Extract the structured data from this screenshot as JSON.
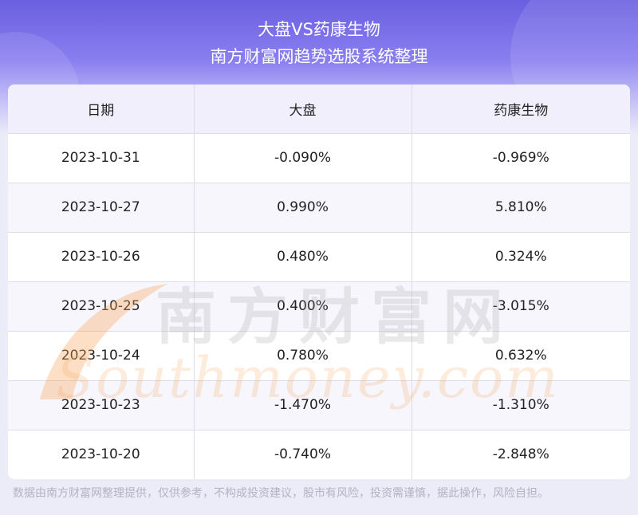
{
  "header": {
    "title": "大盘VS药康生物",
    "subtitle": "南方财富网趋势选股系统整理"
  },
  "table": {
    "columns": [
      "日期",
      "大盘",
      "药康生物"
    ],
    "rows": [
      {
        "date": "2023-10-31",
        "market": "-0.090%",
        "stock": "-0.969%"
      },
      {
        "date": "2023-10-27",
        "market": "0.990%",
        "stock": "5.810%"
      },
      {
        "date": "2023-10-26",
        "market": "0.480%",
        "stock": "0.324%"
      },
      {
        "date": "2023-10-25",
        "market": "0.400%",
        "stock": "-3.015%"
      },
      {
        "date": "2023-10-24",
        "market": "0.780%",
        "stock": "0.632%"
      },
      {
        "date": "2023-10-23",
        "market": "-1.470%",
        "stock": "-1.310%"
      },
      {
        "date": "2023-10-20",
        "market": "-0.740%",
        "stock": "-2.848%"
      }
    ]
  },
  "watermark": {
    "cn_text": "南方财富网",
    "en_text": "Southmoney.com"
  },
  "footer": {
    "disclaimer": "数据由南方财富网整理提供，仅供参考，不构成投资建议，股市有风险，投资需谨慎，据此操作，风险自担。"
  },
  "colors": {
    "header_top": "#6a5fe0",
    "header_bottom": "#c9c4f7",
    "page_bg": "#ecebf8",
    "header_row_bg": "#f1effb",
    "alt_row_bg": "#f7f6fd",
    "watermark_orange": "#f5a25a"
  }
}
